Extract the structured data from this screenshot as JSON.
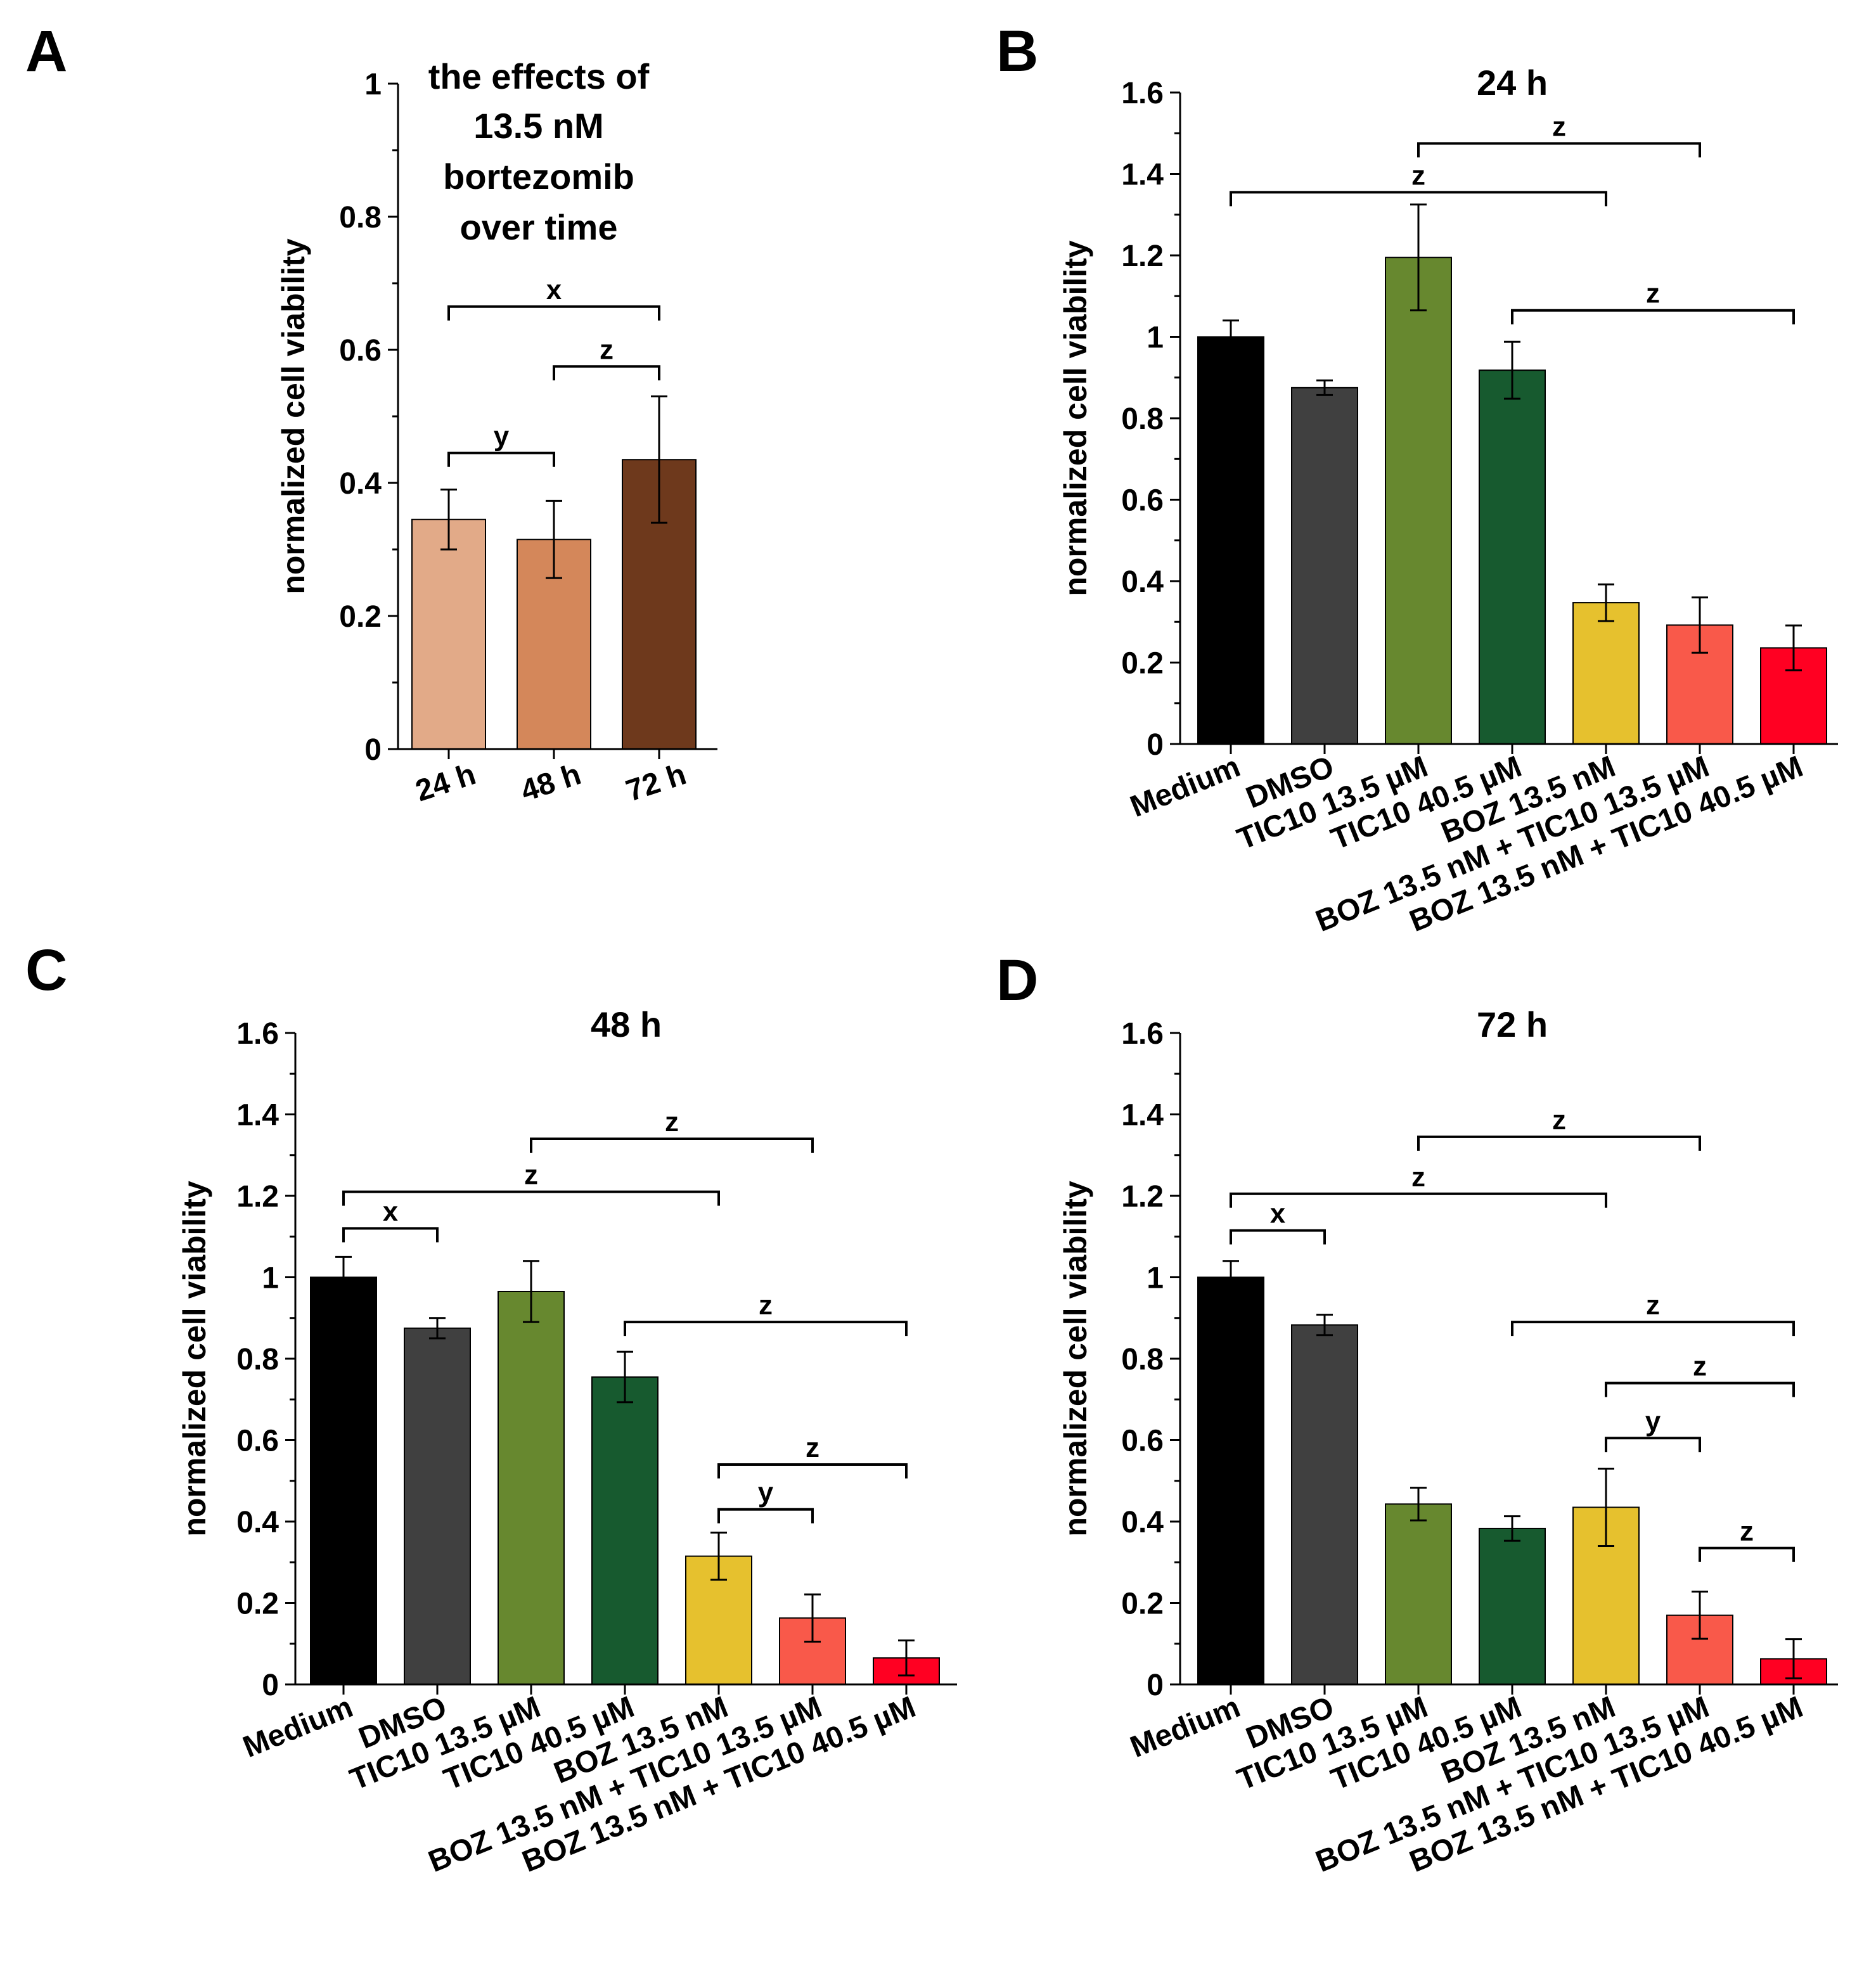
{
  "chart_data": [
    {
      "panel": "A",
      "type": "bar",
      "title": "",
      "annotation": [
        "the effects of",
        "13.5 nM",
        "bortezomib",
        "over time"
      ],
      "xlabel": "",
      "ylabel": "normalized cell viability",
      "ylim": [
        0,
        1
      ],
      "yticks": [
        0,
        0.2,
        0.4,
        0.6,
        0.8,
        1
      ],
      "ytick_labels": [
        "0",
        "0.2",
        "0.4",
        "0.6",
        "0.8",
        "1"
      ],
      "categories": [
        "24 h",
        "48 h",
        "72 h"
      ],
      "values": [
        0.345,
        0.315,
        0.435
      ],
      "errors": [
        0.045,
        0.058,
        0.095
      ],
      "colors": [
        "#E2AA88",
        "#D4875A",
        "#6E391C"
      ],
      "significance": [
        {
          "from": 0,
          "to": 1,
          "label": "y",
          "y": 0.445
        },
        {
          "from": 1,
          "to": 2,
          "label": "z",
          "y": 0.575
        },
        {
          "from": 0,
          "to": 2,
          "label": "x",
          "y": 0.665
        }
      ]
    },
    {
      "panel": "B",
      "type": "bar",
      "title": "24 h",
      "xlabel": "",
      "ylabel": "normalized cell viability",
      "ylim": [
        0,
        1.6
      ],
      "yticks": [
        0,
        0.2,
        0.4,
        0.6,
        0.8,
        1,
        1.2,
        1.4,
        1.6
      ],
      "ytick_labels": [
        "0",
        "0.2",
        "0.4",
        "0.6",
        "0.8",
        "1",
        "1.2",
        "1.4",
        "1.6"
      ],
      "categories": [
        "Medium",
        "DMSO",
        "TIC10 13.5 µM",
        "TIC10 40.5 µM",
        "BOZ 13.5 nM",
        "BOZ 13.5 nM + TIC10 13.5 µM",
        "BOZ 13.5 nM + TIC10 40.5 µM"
      ],
      "values": [
        1.0,
        0.875,
        1.195,
        0.918,
        0.347,
        0.292,
        0.236
      ],
      "errors": [
        0.04,
        0.018,
        0.13,
        0.07,
        0.045,
        0.068,
        0.055
      ],
      "colors": [
        "#000000",
        "#404040",
        "#67882F",
        "#175A2F",
        "#E6C12E",
        "#F9594A",
        "#FF0022"
      ],
      "significance": [
        {
          "from": 2,
          "to": 5,
          "label": "z",
          "y": 1.475
        },
        {
          "from": 0,
          "to": 4,
          "label": "z",
          "y": 1.355
        },
        {
          "from": 3,
          "to": 6,
          "label": "z",
          "y": 1.065
        }
      ]
    },
    {
      "panel": "C",
      "type": "bar",
      "title": "48 h",
      "xlabel": "",
      "ylabel": "normalized cell viability",
      "ylim": [
        0,
        1.6
      ],
      "yticks": [
        0,
        0.2,
        0.4,
        0.6,
        0.8,
        1,
        1.2,
        1.4,
        1.6
      ],
      "ytick_labels": [
        "0",
        "0.2",
        "0.4",
        "0.6",
        "0.8",
        "1",
        "1.2",
        "1.4",
        "1.6"
      ],
      "categories": [
        "Medium",
        "DMSO",
        "TIC10 13.5 µM",
        "TIC10 40.5 µM",
        "BOZ 13.5 nM",
        "BOZ 13.5 nM + TIC10 13.5 µM",
        "BOZ 13.5 nM + TIC10 40.5 µM"
      ],
      "values": [
        1.0,
        0.875,
        0.965,
        0.755,
        0.315,
        0.163,
        0.065
      ],
      "errors": [
        0.05,
        0.025,
        0.075,
        0.062,
        0.058,
        0.058,
        0.043
      ],
      "colors": [
        "#000000",
        "#404040",
        "#67882F",
        "#175A2F",
        "#E6C12E",
        "#F9594A",
        "#FF0022"
      ],
      "significance": [
        {
          "from": 2,
          "to": 5,
          "label": "z",
          "y": 1.34
        },
        {
          "from": 0,
          "to": 4,
          "label": "z",
          "y": 1.21
        },
        {
          "from": 0,
          "to": 1,
          "label": "x",
          "y": 1.12
        },
        {
          "from": 3,
          "to": 6,
          "label": "z",
          "y": 0.89
        },
        {
          "from": 4,
          "to": 6,
          "label": "z",
          "y": 0.54
        },
        {
          "from": 4,
          "to": 5,
          "label": "y",
          "y": 0.43
        }
      ]
    },
    {
      "panel": "D",
      "type": "bar",
      "title": "72 h",
      "xlabel": "",
      "ylabel": "normalized cell viability",
      "ylim": [
        0,
        1.6
      ],
      "yticks": [
        0,
        0.2,
        0.4,
        0.6,
        0.8,
        1,
        1.2,
        1.4,
        1.6
      ],
      "ytick_labels": [
        "0",
        "0.2",
        "0.4",
        "0.6",
        "0.8",
        "1",
        "1.2",
        "1.4",
        "1.6"
      ],
      "categories": [
        "Medium",
        "DMSO",
        "TIC10 13.5 µM",
        "TIC10 40.5 µM",
        "BOZ 13.5 nM",
        "BOZ 13.5 nM + TIC10 13.5 µM",
        "BOZ 13.5 nM + TIC10 40.5 µM"
      ],
      "values": [
        1.0,
        0.883,
        0.443,
        0.383,
        0.435,
        0.17,
        0.063
      ],
      "errors": [
        0.04,
        0.025,
        0.04,
        0.03,
        0.095,
        0.058,
        0.048
      ],
      "colors": [
        "#000000",
        "#404040",
        "#67882F",
        "#175A2F",
        "#E6C12E",
        "#F9594A",
        "#FF0022"
      ],
      "significance": [
        {
          "from": 2,
          "to": 5,
          "label": "z",
          "y": 1.345
        },
        {
          "from": 0,
          "to": 4,
          "label": "z",
          "y": 1.205
        },
        {
          "from": 0,
          "to": 1,
          "label": "x",
          "y": 1.115
        },
        {
          "from": 3,
          "to": 6,
          "label": "z",
          "y": 0.89
        },
        {
          "from": 4,
          "to": 6,
          "label": "z",
          "y": 0.74
        },
        {
          "from": 4,
          "to": 5,
          "label": "y",
          "y": 0.605
        },
        {
          "from": 5,
          "to": 6,
          "label": "z",
          "y": 0.335
        }
      ]
    }
  ]
}
